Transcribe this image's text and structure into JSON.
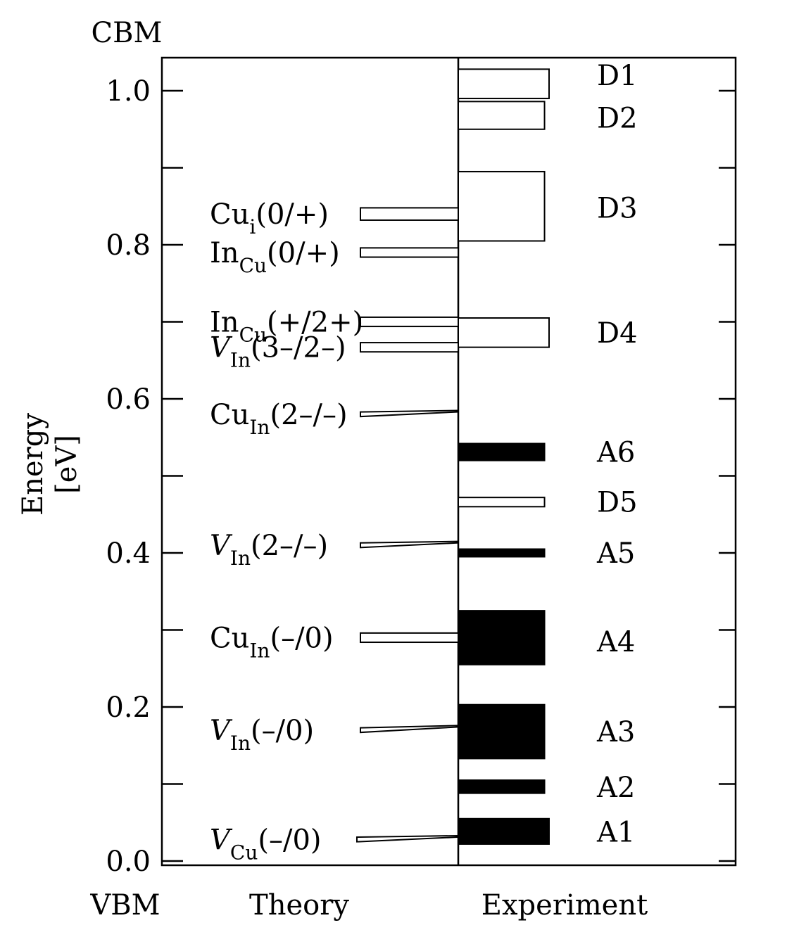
{
  "chart_data": {
    "type": "bar",
    "title": "",
    "ylabel_line1": "Energy",
    "ylabel_line2": "[eV]",
    "top_label": "CBM",
    "bottom_label": "VBM",
    "ylim": [
      0.0,
      1.04
    ],
    "yticks": [
      {
        "value": 0.0,
        "label": "0.0"
      },
      {
        "value": 0.2,
        "label": "0.2"
      },
      {
        "value": 0.4,
        "label": "0.4"
      },
      {
        "value": 0.6,
        "label": "0.6"
      },
      {
        "value": 0.8,
        "label": "0.8"
      },
      {
        "value": 1.0,
        "label": "1.0"
      }
    ],
    "minor_ticks": [
      0.1,
      0.3,
      0.5,
      0.7,
      0.9
    ],
    "columns": {
      "theory": "Theory",
      "experiment": "Experiment"
    },
    "theory_levels": [
      {
        "species": "Cu",
        "sub": "i",
        "charge": "(0/+)",
        "italic": false,
        "y": 0.84,
        "x_tip": 0.84,
        "y_tip": 0.84,
        "h": 0.016
      },
      {
        "species": "In",
        "sub": "Cu",
        "charge": "(0/+)",
        "italic": false,
        "y": 0.79,
        "x_tip": 0.79,
        "y_tip": 0.79,
        "h": 0.012
      },
      {
        "species": "In",
        "sub": "Cu",
        "charge": "(+/2+)",
        "italic": false,
        "y": 0.7,
        "y_tip": 0.7,
        "h": 0.012
      },
      {
        "species": "V",
        "sub": "In",
        "charge": "(3–/2–)",
        "italic": true,
        "y": 0.667,
        "y_tip": 0.667,
        "h": 0.012
      },
      {
        "species": "Cu",
        "sub": "In",
        "charge": "(2–/–)",
        "italic": false,
        "y": 0.58,
        "y_tip": 0.584,
        "h": 0.006
      },
      {
        "species": "V",
        "sub": "In",
        "charge": "(2–/–)",
        "italic": true,
        "y": 0.41,
        "y_tip": 0.414,
        "h": 0.006
      },
      {
        "species": "Cu",
        "sub": "In",
        "charge": "(–/0)",
        "italic": false,
        "y": 0.29,
        "y_tip": 0.29,
        "h": 0.012
      },
      {
        "species": "V",
        "sub": "In",
        "charge": "(–/0)",
        "italic": true,
        "y": 0.17,
        "y_tip": 0.175,
        "h": 0.006
      },
      {
        "species": "V",
        "sub": "Cu",
        "charge": "(–/0)",
        "italic": true,
        "y": 0.028,
        "y_tip": 0.032,
        "h": 0.006
      }
    ],
    "experiment_levels": [
      {
        "name": "D1",
        "low": 0.99,
        "high": 1.028,
        "width": 0.6,
        "filled": false
      },
      {
        "name": "D2",
        "low": 0.95,
        "high": 0.986,
        "width": 0.57,
        "filled": false
      },
      {
        "name": "D3",
        "low": 0.805,
        "high": 0.895,
        "width": 0.57,
        "filled": false
      },
      {
        "name": "D4",
        "low": 0.667,
        "high": 0.705,
        "width": 0.6,
        "filled": false
      },
      {
        "name": "A6",
        "low": 0.52,
        "high": 0.542,
        "width": 0.57,
        "filled": true
      },
      {
        "name": "D5",
        "low": 0.46,
        "high": 0.472,
        "width": 0.57,
        "filled": false
      },
      {
        "name": "A5",
        "low": 0.395,
        "high": 0.405,
        "width": 0.57,
        "filled": true
      },
      {
        "name": "A4",
        "low": 0.255,
        "high": 0.325,
        "width": 0.57,
        "filled": true
      },
      {
        "name": "A3",
        "low": 0.133,
        "high": 0.203,
        "width": 0.57,
        "filled": true
      },
      {
        "name": "A2",
        "low": 0.088,
        "high": 0.105,
        "width": 0.57,
        "filled": true
      },
      {
        "name": "A1",
        "low": 0.022,
        "high": 0.055,
        "width": 0.6,
        "filled": true
      }
    ],
    "exp_label_y": {
      "D1": 1.02,
      "D2": 0.965,
      "D3": 0.848,
      "D4": 0.686,
      "A6": 0.531,
      "D5": 0.466,
      "A5": 0.4,
      "A4": 0.285,
      "A3": 0.168,
      "A2": 0.096,
      "A1": 0.038
    },
    "grid": false,
    "legend": "none"
  }
}
